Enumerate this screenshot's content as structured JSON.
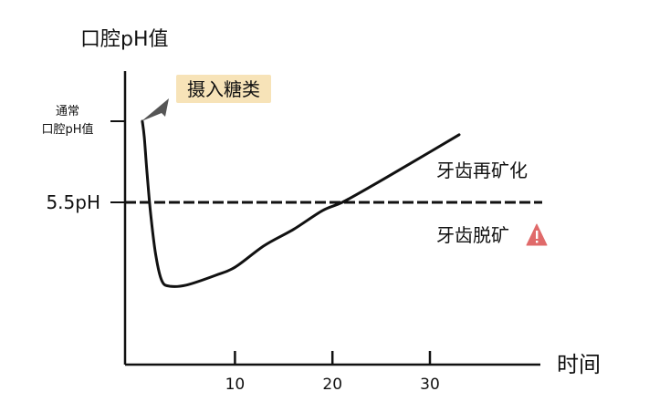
{
  "chart_data": {
    "type": "line",
    "title": "",
    "ylabel": "口腔pH值",
    "xlabel": "时间",
    "x_ticks": [
      10,
      20,
      30
    ],
    "xlim": [
      0,
      42
    ],
    "y_ticks": [
      {
        "label": "通常\n口腔pH值",
        "value": 7.0
      },
      {
        "label": "5.5pH",
        "value": 5.5
      }
    ],
    "ylim": [
      3.0,
      7.4
    ],
    "threshold": {
      "value": 5.5,
      "style": "dashed"
    },
    "series": [
      {
        "name": "",
        "color": "#111111",
        "points": [
          [
            0.5,
            7.0
          ],
          [
            0.7,
            6.7
          ],
          [
            1.0,
            6.0
          ],
          [
            1.4,
            5.2
          ],
          [
            1.9,
            4.5
          ],
          [
            2.5,
            4.05
          ],
          [
            3.3,
            3.95
          ],
          [
            5,
            3.97
          ],
          [
            8,
            4.15
          ],
          [
            10,
            4.3
          ],
          [
            13,
            4.7
          ],
          [
            16,
            5.0
          ],
          [
            19,
            5.35
          ],
          [
            21,
            5.5
          ],
          [
            24,
            5.8
          ],
          [
            28,
            6.22
          ],
          [
            33,
            6.75
          ]
        ]
      }
    ],
    "annotations": {
      "intake": {
        "label": "摄入糖类",
        "x": 0.5,
        "y": 7.0,
        "bg": "#f7e3b8"
      },
      "remineralization": {
        "label": "牙齿再矿化"
      },
      "demineralization": {
        "label": "牙齿脱矿",
        "icon": "warning-triangle-icon",
        "icon_color": "#e06a6a"
      }
    }
  }
}
